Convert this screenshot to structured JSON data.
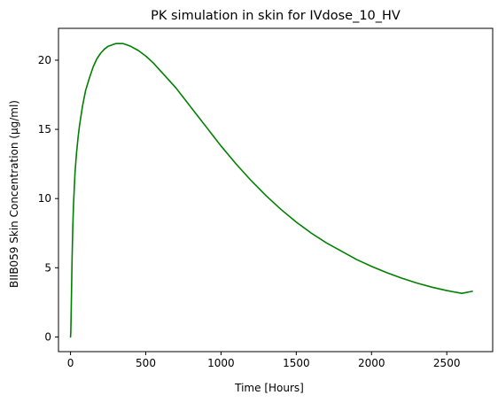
{
  "chart_data": {
    "type": "line",
    "title": "PK simulation in skin for IVdose_10_HV",
    "xlabel": "Time [Hours]",
    "ylabel": "BIIB059 Skin Concentration (µg/ml)",
    "xlim": [
      -80,
      2805
    ],
    "ylim": [
      -1.06,
      22.3
    ],
    "xticks": [
      0,
      500,
      1000,
      1500,
      2000,
      2500
    ],
    "yticks": [
      0,
      5,
      10,
      15,
      20
    ],
    "grid": false,
    "legend": "none",
    "series": [
      {
        "color": "#008000",
        "x": [
          0,
          2,
          5,
          10,
          15,
          20,
          30,
          40,
          50,
          60,
          80,
          100,
          125,
          150,
          175,
          200,
          225,
          250,
          275,
          300,
          325,
          350,
          375,
          400,
          450,
          500,
          550,
          600,
          650,
          700,
          750,
          800,
          850,
          900,
          950,
          1000,
          1100,
          1200,
          1300,
          1400,
          1500,
          1600,
          1700,
          1800,
          1900,
          2000,
          2100,
          2200,
          2300,
          2400,
          2500,
          2600,
          2670
        ],
        "y": [
          0,
          0.4,
          2.2,
          5.5,
          7.9,
          9.6,
          11.9,
          13.3,
          14.4,
          15.3,
          16.7,
          17.8,
          18.7,
          19.5,
          20.1,
          20.5,
          20.8,
          21.0,
          21.1,
          21.2,
          21.2,
          21.2,
          21.1,
          21.0,
          20.7,
          20.3,
          19.8,
          19.2,
          18.6,
          18.0,
          17.3,
          16.6,
          15.9,
          15.2,
          14.5,
          13.8,
          12.5,
          11.3,
          10.2,
          9.2,
          8.3,
          7.5,
          6.8,
          6.2,
          5.6,
          5.1,
          4.65,
          4.25,
          3.9,
          3.6,
          3.35,
          3.15,
          3.3
        ]
      }
    ]
  }
}
